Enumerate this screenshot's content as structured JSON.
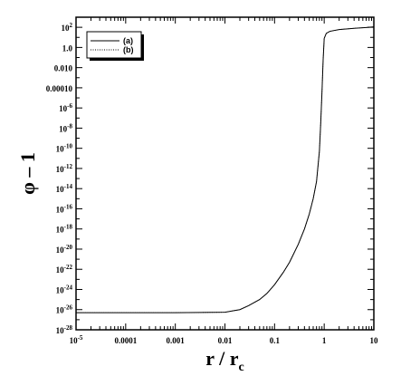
{
  "chart_data": {
    "type": "line",
    "title": "",
    "xlabel": {
      "main": "r / r",
      "sub": "c"
    },
    "ylabel": "φ – 1",
    "x_scale": "log",
    "y_scale": "log",
    "xlim": [
      1e-05,
      10
    ],
    "ylim": [
      1e-28,
      1000
    ],
    "x_ticks": [
      {
        "value": 1e-05,
        "label": "10",
        "exp": "-5"
      },
      {
        "value": 0.0001,
        "label": "0.0001",
        "exp": ""
      },
      {
        "value": 0.001,
        "label": "0.001",
        "exp": ""
      },
      {
        "value": 0.01,
        "label": "0.01",
        "exp": ""
      },
      {
        "value": 0.1,
        "label": "0.1",
        "exp": ""
      },
      {
        "value": 1,
        "label": "1",
        "exp": ""
      },
      {
        "value": 10,
        "label": "10",
        "exp": ""
      }
    ],
    "y_ticks": [
      {
        "value": 100,
        "label": "10",
        "exp": "2"
      },
      {
        "value": 1,
        "label": "1.0",
        "exp": ""
      },
      {
        "value": 0.01,
        "label": "0.010",
        "exp": ""
      },
      {
        "value": 0.0001,
        "label": "0.00010",
        "exp": ""
      },
      {
        "value": 1e-06,
        "label": "10",
        "exp": "-6"
      },
      {
        "value": 1e-08,
        "label": "10",
        "exp": "-8"
      },
      {
        "value": 1e-10,
        "label": "10",
        "exp": "-10"
      },
      {
        "value": 1e-12,
        "label": "10",
        "exp": "-12"
      },
      {
        "value": 1e-14,
        "label": "10",
        "exp": "-14"
      },
      {
        "value": 1e-16,
        "label": "10",
        "exp": "-16"
      },
      {
        "value": 1e-18,
        "label": "10",
        "exp": "-18"
      },
      {
        "value": 1e-20,
        "label": "10",
        "exp": "-20"
      },
      {
        "value": 1e-22,
        "label": "10",
        "exp": "-22"
      },
      {
        "value": 1e-24,
        "label": "10",
        "exp": "-24"
      },
      {
        "value": 1e-26,
        "label": "10",
        "exp": "-26"
      },
      {
        "value": 1e-28,
        "label": "10",
        "exp": "-28"
      }
    ],
    "legend": {
      "position": "top-left",
      "entries": [
        "(a)",
        "(b)"
      ]
    },
    "grid": false,
    "series": [
      {
        "name": "(a)",
        "color": "#000000",
        "style": "solid",
        "points": [
          [
            1e-05,
            5e-27
          ],
          [
            0.001,
            5e-27
          ],
          [
            0.01,
            5.5e-27
          ],
          [
            0.02,
            1e-26
          ],
          [
            0.03,
            2.5e-26
          ],
          [
            0.05,
            1e-25
          ],
          [
            0.07,
            4e-25
          ],
          [
            0.1,
            3e-24
          ],
          [
            0.15,
            5e-23
          ],
          [
            0.2,
            5e-22
          ],
          [
            0.3,
            3e-20
          ],
          [
            0.4,
            1e-18
          ],
          [
            0.5,
            3e-17
          ],
          [
            0.6,
            1e-15
          ],
          [
            0.7,
            5e-14
          ],
          [
            0.8,
            5e-11
          ],
          [
            0.85,
            3e-08
          ],
          [
            0.9,
            3e-05
          ],
          [
            0.95,
            0.05
          ],
          [
            1.0,
            8
          ],
          [
            1.1,
            25
          ],
          [
            1.3,
            40
          ],
          [
            2,
            60
          ],
          [
            4,
            80
          ],
          [
            7,
            95
          ],
          [
            10,
            110
          ]
        ]
      },
      {
        "name": "(b)",
        "color": "#000000",
        "style": "dotted",
        "points": [
          [
            1e-05,
            5e-27
          ],
          [
            0.001,
            5e-27
          ],
          [
            0.01,
            5.5e-27
          ],
          [
            0.02,
            1e-26
          ],
          [
            0.03,
            2.5e-26
          ],
          [
            0.05,
            1e-25
          ],
          [
            0.07,
            4e-25
          ],
          [
            0.1,
            3e-24
          ],
          [
            0.15,
            5e-23
          ],
          [
            0.2,
            5e-22
          ],
          [
            0.3,
            3e-20
          ],
          [
            0.4,
            1e-18
          ],
          [
            0.5,
            3e-17
          ],
          [
            0.6,
            1e-15
          ],
          [
            0.7,
            5e-14
          ],
          [
            0.8,
            5e-11
          ],
          [
            0.85,
            3e-08
          ],
          [
            0.9,
            3e-05
          ],
          [
            0.95,
            0.05
          ],
          [
            1.0,
            8
          ],
          [
            1.1,
            25
          ],
          [
            1.3,
            40
          ],
          [
            2,
            60
          ],
          [
            4,
            80
          ],
          [
            7,
            95
          ],
          [
            10,
            110
          ]
        ]
      }
    ]
  }
}
